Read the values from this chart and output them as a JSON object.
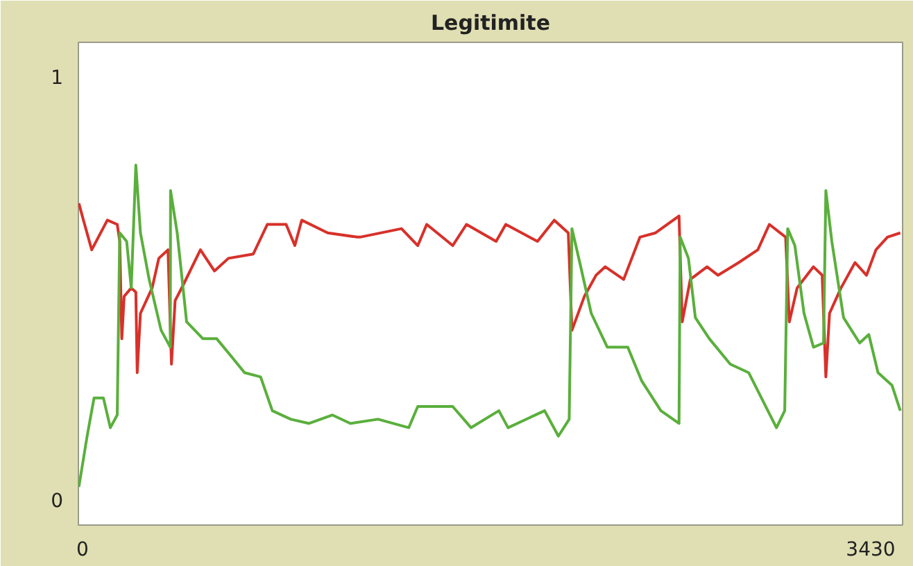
{
  "chart_data": {
    "type": "line",
    "title": "Legitimite",
    "xlim": [
      -18,
      3569
    ],
    "ylim": [
      -0.06,
      1.08
    ],
    "xticks": [
      0,
      3430
    ],
    "yticks": [
      0,
      1
    ],
    "marker": "none",
    "line_style": "solid",
    "series": [
      {
        "color": "#d7312a",
        "x": [
          -16,
          4,
          40,
          108,
          151,
          162,
          171,
          181,
          212,
          232,
          238,
          252,
          303,
          332,
          372,
          387,
          403,
          441,
          513,
          574,
          635,
          743,
          804,
          886,
          924,
          954,
          1067,
          1196,
          1208,
          1388,
          1459,
          1498,
          1611,
          1671,
          1800,
          1842,
          1980,
          2053,
          2114,
          2130,
          2184,
          2235,
          2275,
          2355,
          2426,
          2494,
          2596,
          2610,
          2645,
          2718,
          2766,
          2856,
          2939,
          2989,
          3060,
          3076,
          3110,
          3181,
          3219,
          3235,
          3251,
          3301,
          3362,
          3412,
          3453,
          3503,
          3559
        ],
        "values": [
          0.7,
          0.66,
          0.59,
          0.66,
          0.65,
          0.61,
          0.38,
          0.48,
          0.5,
          0.49,
          0.3,
          0.44,
          0.5,
          0.57,
          0.59,
          0.32,
          0.47,
          0.51,
          0.59,
          0.54,
          0.57,
          0.58,
          0.65,
          0.65,
          0.6,
          0.66,
          0.63,
          0.62,
          0.62,
          0.64,
          0.6,
          0.65,
          0.6,
          0.65,
          0.61,
          0.65,
          0.61,
          0.66,
          0.63,
          0.4,
          0.48,
          0.53,
          0.55,
          0.52,
          0.62,
          0.63,
          0.67,
          0.42,
          0.52,
          0.55,
          0.53,
          0.56,
          0.59,
          0.65,
          0.62,
          0.42,
          0.5,
          0.55,
          0.53,
          0.29,
          0.44,
          0.5,
          0.56,
          0.53,
          0.59,
          0.62,
          0.63
        ]
      },
      {
        "color": "#5aaf3c",
        "x": [
          -16,
          20,
          50,
          91,
          121,
          151,
          162,
          192,
          212,
          232,
          252,
          290,
          342,
          382,
          383,
          412,
          453,
          524,
          584,
          645,
          705,
          775,
          826,
          906,
          986,
          1087,
          1166,
          1286,
          1420,
          1459,
          1611,
          1691,
          1812,
          1852,
          2011,
          2071,
          2118,
          2130,
          2164,
          2214,
          2284,
          2373,
          2434,
          2517,
          2596,
          2601,
          2637,
          2667,
          2728,
          2819,
          2899,
          3020,
          3056,
          3069,
          3100,
          3140,
          3181,
          3225,
          3235,
          3261,
          3312,
          3382,
          3422,
          3462,
          3523,
          3559
        ],
        "values": [
          0.03,
          0.15,
          0.24,
          0.24,
          0.17,
          0.2,
          0.63,
          0.61,
          0.5,
          0.79,
          0.63,
          0.52,
          0.4,
          0.36,
          0.73,
          0.63,
          0.42,
          0.38,
          0.38,
          0.34,
          0.3,
          0.29,
          0.21,
          0.19,
          0.18,
          0.2,
          0.18,
          0.19,
          0.17,
          0.22,
          0.22,
          0.17,
          0.21,
          0.17,
          0.21,
          0.15,
          0.19,
          0.64,
          0.56,
          0.44,
          0.36,
          0.36,
          0.28,
          0.21,
          0.18,
          0.62,
          0.57,
          0.43,
          0.38,
          0.32,
          0.3,
          0.17,
          0.21,
          0.64,
          0.6,
          0.44,
          0.36,
          0.37,
          0.73,
          0.61,
          0.43,
          0.37,
          0.39,
          0.3,
          0.27,
          0.21
        ]
      }
    ]
  }
}
